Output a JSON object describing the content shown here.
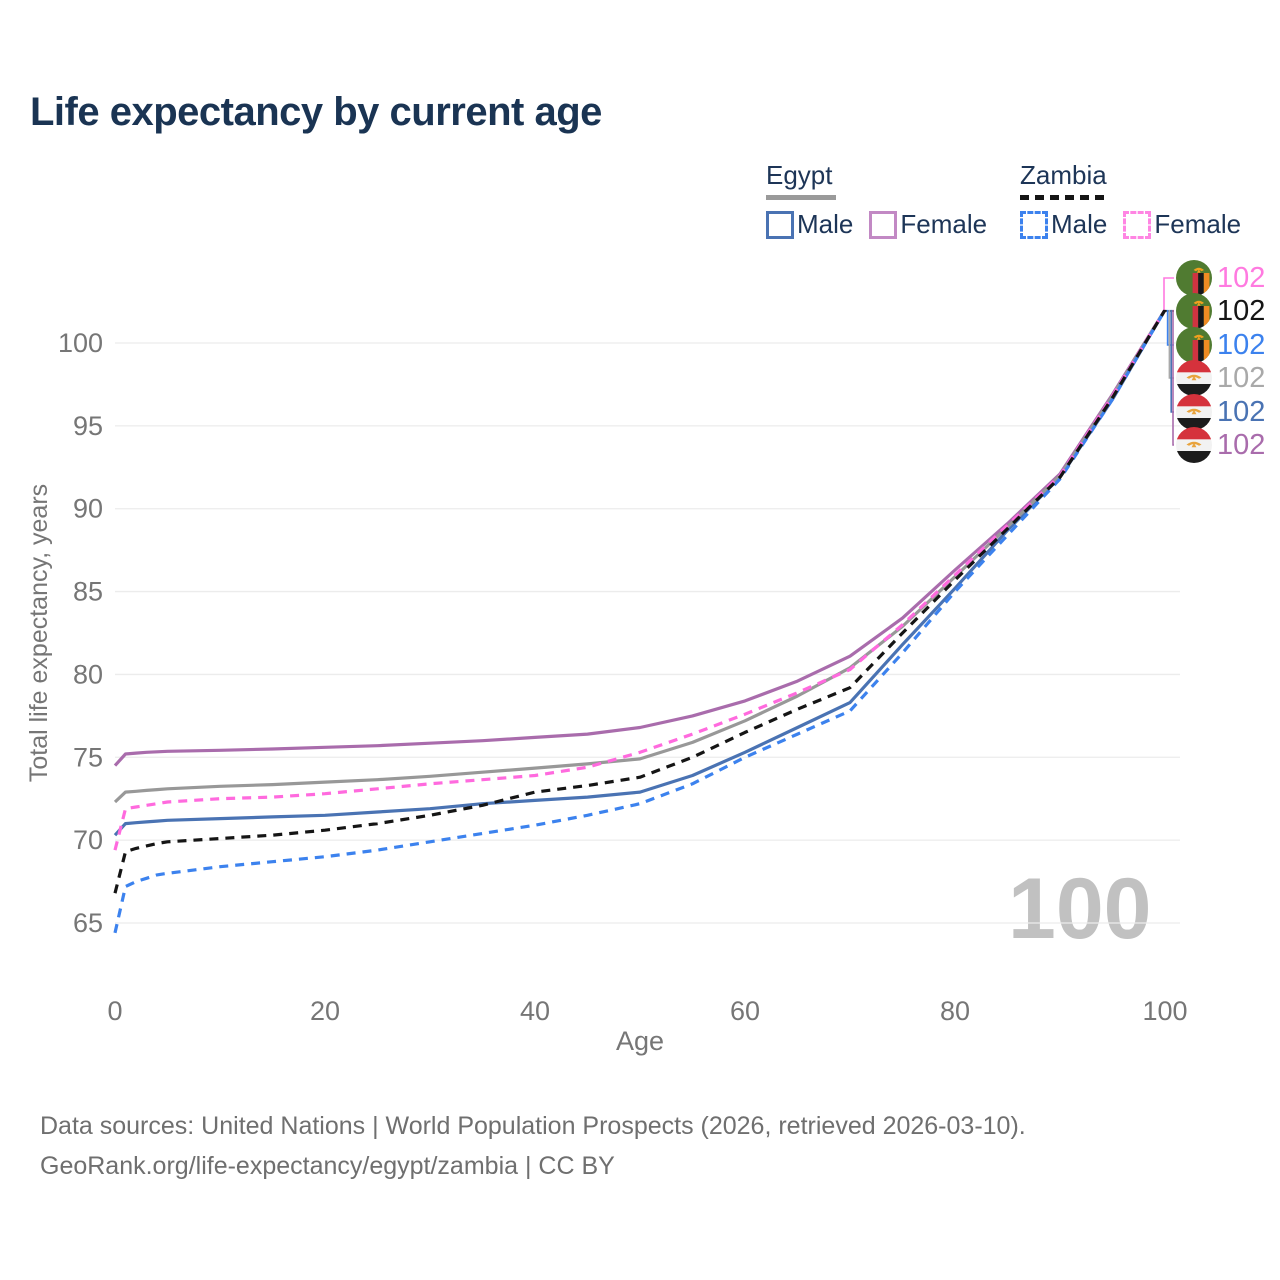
{
  "title": "Life expectancy by current age",
  "watermark": "100",
  "legend": {
    "groups": [
      {
        "label": "Egypt",
        "line_style": "solid",
        "underline_color": "#9a9a9a",
        "items": [
          {
            "label": "Male",
            "color": "#4a73b3"
          },
          {
            "label": "Female",
            "color": "#c289c4"
          }
        ]
      },
      {
        "label": "Zambia",
        "line_style": "dashed",
        "underline_color": "#151515",
        "items": [
          {
            "label": "Male",
            "color": "#3c82ee"
          },
          {
            "label": "Female",
            "color": "#ff85e3"
          }
        ]
      }
    ]
  },
  "end_labels": [
    {
      "series": "Zambia Female",
      "flag": "zambia",
      "value": "102",
      "color": "#ff7ae0"
    },
    {
      "series": "Zambia Both sexes",
      "flag": "zambia",
      "value": "102",
      "color": "#151515"
    },
    {
      "series": "Zambia Male",
      "flag": "zambia",
      "value": "102",
      "color": "#3c82ee"
    },
    {
      "series": "Egypt Both sexes",
      "flag": "egypt",
      "value": "102",
      "color": "#a9a9a9"
    },
    {
      "series": "Egypt Male",
      "flag": "egypt",
      "value": "102",
      "color": "#4a73b3"
    },
    {
      "series": "Egypt Female",
      "flag": "egypt",
      "value": "102",
      "color": "#a96cac"
    }
  ],
  "footer": {
    "line1": "Data sources: United Nations | World Population Prospects (2026, retrieved 2026-03-10).",
    "line2": "GeoRank.org/life-expectancy/egypt/zambia | CC BY"
  },
  "chart_data": {
    "type": "line",
    "title": "Life expectancy by current age",
    "xlabel": "Age",
    "ylabel": "Total life expectancy, years",
    "xlim": [
      0,
      100
    ],
    "ylim": [
      63,
      103
    ],
    "x_ticks": [
      0,
      20,
      40,
      60,
      80,
      100
    ],
    "y_ticks": [
      65,
      70,
      75,
      80,
      85,
      90,
      95,
      100
    ],
    "grid": "horizontal gridlines only",
    "legend_position": "top-right",
    "x": [
      0,
      1,
      2,
      3,
      4,
      5,
      10,
      15,
      20,
      25,
      30,
      35,
      40,
      45,
      50,
      55,
      60,
      65,
      70,
      75,
      80,
      85,
      90,
      95,
      100
    ],
    "series": [
      {
        "name": "Egypt Male",
        "country": "Egypt",
        "sex": "Male",
        "dash": "solid",
        "color": "#4a73b3",
        "values": [
          70.3,
          71.0,
          71.05,
          71.1,
          71.15,
          71.2,
          71.3,
          71.4,
          71.5,
          71.7,
          71.9,
          72.2,
          72.4,
          72.6,
          72.9,
          73.9,
          75.3,
          76.8,
          78.3,
          81.8,
          85.2,
          88.7,
          91.9,
          96.6,
          102
        ]
      },
      {
        "name": "Egypt Female",
        "country": "Egypt",
        "sex": "Female",
        "dash": "solid",
        "color": "#a96cac",
        "values": [
          74.5,
          75.2,
          75.25,
          75.3,
          75.33,
          75.36,
          75.42,
          75.5,
          75.6,
          75.7,
          75.85,
          76.0,
          76.2,
          76.4,
          76.8,
          77.5,
          78.4,
          79.6,
          81.1,
          83.4,
          86.3,
          89.1,
          92.1,
          96.9,
          102
        ]
      },
      {
        "name": "Egypt Both sexes",
        "country": "Egypt",
        "sex": "Both",
        "dash": "solid",
        "color": "#989898",
        "values": [
          72.3,
          72.9,
          72.95,
          73.0,
          73.05,
          73.1,
          73.25,
          73.35,
          73.5,
          73.65,
          73.85,
          74.1,
          74.35,
          74.6,
          74.9,
          75.9,
          77.2,
          78.7,
          80.4,
          82.9,
          85.9,
          88.9,
          92.0,
          96.8,
          102
        ]
      },
      {
        "name": "Zambia Male",
        "country": "Zambia",
        "sex": "Male",
        "dash": "dashed",
        "color": "#3c82ee",
        "values": [
          64.4,
          67.2,
          67.5,
          67.7,
          67.9,
          68.0,
          68.4,
          68.7,
          69.0,
          69.4,
          69.9,
          70.4,
          70.9,
          71.5,
          72.2,
          73.4,
          75.0,
          76.4,
          77.8,
          81.3,
          85.0,
          88.4,
          91.8,
          96.6,
          102
        ]
      },
      {
        "name": "Zambia Female",
        "country": "Zambia",
        "sex": "Female",
        "dash": "dashed",
        "color": "#ff6ade",
        "values": [
          69.4,
          71.9,
          72.0,
          72.1,
          72.2,
          72.3,
          72.5,
          72.6,
          72.8,
          73.1,
          73.4,
          73.65,
          73.9,
          74.4,
          75.3,
          76.4,
          77.6,
          78.9,
          80.3,
          83.0,
          86.0,
          89.0,
          92.0,
          96.8,
          102
        ]
      },
      {
        "name": "Zambia Both sexes",
        "country": "Zambia",
        "sex": "Both",
        "dash": "dashed",
        "color": "#151515",
        "values": [
          66.8,
          69.3,
          69.5,
          69.65,
          69.8,
          69.9,
          70.1,
          70.3,
          70.6,
          71.0,
          71.5,
          72.1,
          72.9,
          73.3,
          73.8,
          75.0,
          76.5,
          77.9,
          79.2,
          82.5,
          85.7,
          88.8,
          91.9,
          96.7,
          102
        ]
      }
    ],
    "end_value_at_age_100": 102
  }
}
